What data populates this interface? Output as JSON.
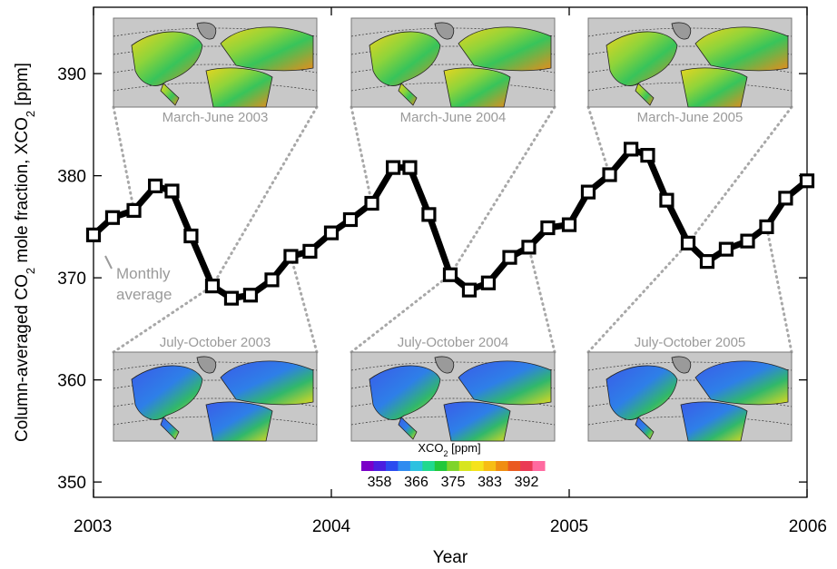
{
  "chart_data": {
    "type": "line",
    "title": "",
    "xlabel": "Year",
    "ylabel_parts": {
      "pre": "Column-averaged CO",
      "sub": "2",
      "mid": " mole fraction, XCO",
      "sub2": "2",
      "post": " [ppm]"
    },
    "xlim": [
      2003.0,
      2006.0
    ],
    "ylim": [
      348.5,
      396.5
    ],
    "xticks": [
      {
        "value": 2003,
        "label": "2003"
      },
      {
        "value": 2004,
        "label": "2004"
      },
      {
        "value": 2005,
        "label": "2005"
      },
      {
        "value": 2006,
        "label": "2006"
      }
    ],
    "yticks": [
      {
        "value": 350,
        "label": "350"
      },
      {
        "value": 360,
        "label": "360"
      },
      {
        "value": 370,
        "label": "370"
      },
      {
        "value": 380,
        "label": "380"
      },
      {
        "value": 390,
        "label": "390"
      }
    ],
    "grid": false,
    "series": [
      {
        "name": "Monthly average",
        "color": "#000000",
        "marker": "square",
        "x": [
          2003.0,
          2003.08,
          2003.17,
          2003.26,
          2003.33,
          2003.41,
          2003.5,
          2003.58,
          2003.66,
          2003.75,
          2003.83,
          2003.91,
          2004.0,
          2004.08,
          2004.17,
          2004.26,
          2004.33,
          2004.41,
          2004.5,
          2004.58,
          2004.66,
          2004.75,
          2004.83,
          2004.91,
          2005.0,
          2005.08,
          2005.17,
          2005.26,
          2005.33,
          2005.41,
          2005.5,
          2005.58,
          2005.66,
          2005.75,
          2005.83,
          2005.91,
          2006.0
        ],
        "y": [
          374.2,
          375.9,
          376.6,
          379.0,
          378.5,
          374.1,
          369.2,
          368.0,
          368.3,
          369.8,
          372.1,
          372.6,
          374.4,
          375.7,
          377.3,
          380.8,
          380.8,
          376.2,
          370.3,
          368.8,
          369.5,
          372.0,
          373.0,
          374.9,
          375.2,
          378.4,
          380.1,
          382.6,
          382.0,
          377.6,
          373.4,
          371.6,
          372.8,
          373.6,
          375.0,
          377.8,
          379.5
        ]
      }
    ],
    "annotations": [
      {
        "text_lines": [
          "Monthly",
          "average"
        ],
        "color": "#9a9a9a"
      }
    ],
    "insets": [
      {
        "label": "March-June 2003",
        "period": [
          2003.17,
          2003.5
        ],
        "row": "top",
        "col": 0
      },
      {
        "label": "March-June 2004",
        "period": [
          2004.17,
          2004.5
        ],
        "row": "top",
        "col": 1
      },
      {
        "label": "March-June 2005",
        "period": [
          2005.17,
          2005.5
        ],
        "row": "top",
        "col": 2
      },
      {
        "label": "July-October 2003",
        "period": [
          2003.5,
          2003.83
        ],
        "row": "bottom",
        "col": 0
      },
      {
        "label": "July-October 2004",
        "period": [
          2004.5,
          2004.83
        ],
        "row": "bottom",
        "col": 1
      },
      {
        "label": "July-October 2005",
        "period": [
          2005.5,
          2005.83
        ],
        "row": "bottom",
        "col": 2
      }
    ],
    "colorbar": {
      "title_pre": "XCO",
      "title_sub": "2",
      "title_post": " [ppm]",
      "tick_labels": [
        "358",
        "366",
        "375",
        "383",
        "392"
      ],
      "colors": [
        "#7a00c8",
        "#4a1fe0",
        "#2a4cf0",
        "#2f8bf0",
        "#2cc1e0",
        "#21d98e",
        "#22c83a",
        "#7fd42a",
        "#d7e51f",
        "#f5e31c",
        "#f7bd14",
        "#f08d12",
        "#ea5a20",
        "#ea3a55",
        "#ff6aa0"
      ]
    },
    "colors": {
      "line": "#000000",
      "connector": "#a8a8a8",
      "inset_label": "#9a9a9a",
      "map_background": "#c8c8c8"
    }
  }
}
